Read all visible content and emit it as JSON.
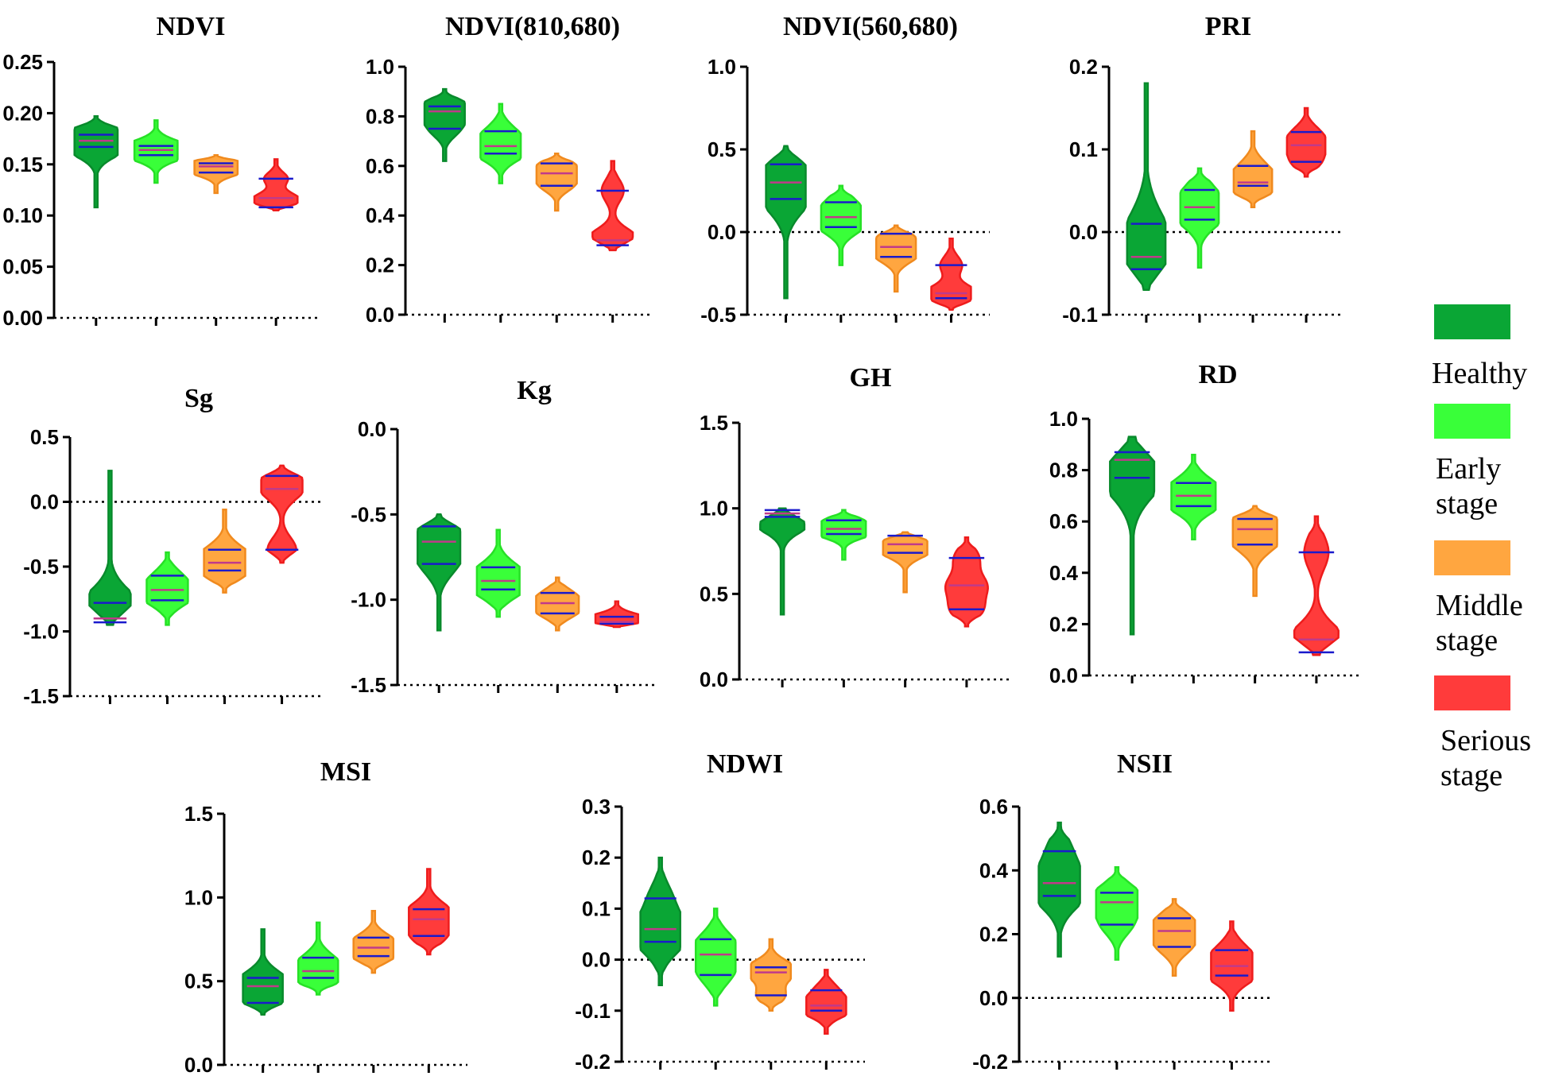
{
  "chart_data": {
    "type": "violin",
    "groups": [
      "Healthy",
      "Early stage",
      "Middle stage",
      "Serious stage"
    ],
    "colors": {
      "Healthy": "#0aa635",
      "Early stage": "#39ff39",
      "Middle stage": "#ffa640",
      "Serious stage": "#ff3b3b"
    },
    "line_colors": {
      "Healthy": "#098a2c",
      "Early stage": "#27e027",
      "Middle stage": "#f08a1e",
      "Serious stage": "#ee1c1c"
    },
    "panels": [
      {
        "title": "NDVI",
        "ylim": [
          0,
          0.25
        ],
        "yticks": [
          "0.00",
          "0.05",
          "0.10",
          "0.15",
          "0.20",
          "0.25"
        ],
        "zero_line": false,
        "violins": [
          {
            "min": 0.108,
            "max": 0.197,
            "q1": 0.167,
            "median": 0.173,
            "q3": 0.179
          },
          {
            "min": 0.132,
            "max": 0.193,
            "q1": 0.159,
            "median": 0.164,
            "q3": 0.168
          },
          {
            "min": 0.122,
            "max": 0.159,
            "q1": 0.142,
            "median": 0.148,
            "q3": 0.151
          },
          {
            "min": 0.105,
            "max": 0.155,
            "q1": 0.108,
            "median": 0.117,
            "q3": 0.136
          }
        ]
      },
      {
        "title": "NDVI(810,680)",
        "ylim": [
          0,
          1.0
        ],
        "yticks": [
          "0.0",
          "0.2",
          "0.4",
          "0.6",
          "0.8",
          "1.0"
        ],
        "zero_line": false,
        "violins": [
          {
            "min": 0.62,
            "max": 0.91,
            "q1": 0.75,
            "median": 0.82,
            "q3": 0.84
          },
          {
            "min": 0.53,
            "max": 0.85,
            "q1": 0.65,
            "median": 0.68,
            "q3": 0.74
          },
          {
            "min": 0.42,
            "max": 0.65,
            "q1": 0.52,
            "median": 0.57,
            "q3": 0.61
          },
          {
            "min": 0.26,
            "max": 0.62,
            "q1": 0.28,
            "median": 0.3,
            "q3": 0.5
          }
        ]
      },
      {
        "title": "NDVI(560,680)",
        "ylim": [
          -0.5,
          1.0
        ],
        "yticks": [
          "-0.5",
          "0.0",
          "0.5",
          "1.0"
        ],
        "zero_line": true,
        "violins": [
          {
            "min": -0.4,
            "max": 0.52,
            "q1": 0.2,
            "median": 0.3,
            "q3": 0.41
          },
          {
            "min": -0.2,
            "max": 0.28,
            "q1": 0.03,
            "median": 0.09,
            "q3": 0.18
          },
          {
            "min": -0.36,
            "max": 0.04,
            "q1": -0.15,
            "median": -0.09,
            "q3": -0.01
          },
          {
            "min": -0.47,
            "max": -0.04,
            "q1": -0.4,
            "median": -0.37,
            "q3": -0.2
          }
        ]
      },
      {
        "title": "PRI",
        "ylim": [
          -0.1,
          0.2
        ],
        "yticks": [
          "-0.1",
          "0.0",
          "0.1",
          "0.2"
        ],
        "zero_line": true,
        "violins": [
          {
            "min": -0.07,
            "max": 0.18,
            "q1": -0.045,
            "median": -0.03,
            "q3": 0.01
          },
          {
            "min": -0.043,
            "max": 0.077,
            "q1": 0.015,
            "median": 0.03,
            "q3": 0.051
          },
          {
            "min": 0.03,
            "max": 0.122,
            "q1": 0.056,
            "median": 0.06,
            "q3": 0.08
          },
          {
            "min": 0.067,
            "max": 0.15,
            "q1": 0.085,
            "median": 0.105,
            "q3": 0.121
          }
        ]
      },
      {
        "title": "Sg",
        "ylim": [
          -1.5,
          0.5
        ],
        "yticks": [
          "-1.5",
          "-1.0",
          "-0.5",
          "0.0",
          "0.5"
        ],
        "zero_line": true,
        "violins": [
          {
            "min": -0.95,
            "max": 0.24,
            "q1": -0.93,
            "median": -0.9,
            "q3": -0.78
          },
          {
            "min": -0.95,
            "max": -0.39,
            "q1": -0.76,
            "median": -0.68,
            "q3": -0.57
          },
          {
            "min": -0.7,
            "max": -0.06,
            "q1": -0.53,
            "median": -0.47,
            "q3": -0.37
          },
          {
            "min": -0.47,
            "max": 0.28,
            "q1": -0.37,
            "median": 0.1,
            "q3": 0.2
          }
        ]
      },
      {
        "title": "Kg",
        "ylim": [
          -1.5,
          0.0
        ],
        "yticks": [
          "-1.5",
          "-1.0",
          "-0.5",
          "0.0"
        ],
        "zero_line": true,
        "violins": [
          {
            "min": -1.18,
            "max": -0.5,
            "q1": -0.79,
            "median": -0.66,
            "q3": -0.57
          },
          {
            "min": -1.1,
            "max": -0.59,
            "q1": -0.94,
            "median": -0.89,
            "q3": -0.81
          },
          {
            "min": -1.18,
            "max": -0.87,
            "q1": -1.08,
            "median": -1.02,
            "q3": -0.96
          },
          {
            "min": -1.16,
            "max": -1.01,
            "q1": -1.14,
            "median": -1.13,
            "q3": -1.1
          }
        ]
      },
      {
        "title": "GH",
        "ylim": [
          0.0,
          1.5
        ],
        "yticks": [
          "0.0",
          "0.5",
          "1.0",
          "1.5"
        ],
        "zero_line": false,
        "violins": [
          {
            "min": 0.38,
            "max": 1.0,
            "q1": 0.95,
            "median": 0.97,
            "q3": 0.99
          },
          {
            "min": 0.7,
            "max": 0.99,
            "q1": 0.85,
            "median": 0.88,
            "q3": 0.93
          },
          {
            "min": 0.51,
            "max": 0.86,
            "q1": 0.74,
            "median": 0.79,
            "q3": 0.84
          },
          {
            "min": 0.31,
            "max": 0.83,
            "q1": 0.41,
            "median": 0.55,
            "q3": 0.71
          }
        ]
      },
      {
        "title": "RD",
        "ylim": [
          0.0,
          1.0
        ],
        "yticks": [
          "0.0",
          "0.2",
          "0.4",
          "0.6",
          "0.8",
          "1.0"
        ],
        "zero_line": false,
        "violins": [
          {
            "min": 0.16,
            "max": 0.93,
            "q1": 0.77,
            "median": 0.84,
            "q3": 0.87
          },
          {
            "min": 0.53,
            "max": 0.86,
            "q1": 0.66,
            "median": 0.7,
            "q3": 0.75
          },
          {
            "min": 0.31,
            "max": 0.66,
            "q1": 0.51,
            "median": 0.57,
            "q3": 0.61
          },
          {
            "min": 0.08,
            "max": 0.62,
            "q1": 0.09,
            "median": 0.14,
            "q3": 0.48
          }
        ]
      },
      {
        "title": "MSI",
        "ylim": [
          0.0,
          1.5
        ],
        "yticks": [
          "0.0",
          "0.5",
          "1.0",
          "1.5"
        ],
        "zero_line": false,
        "violins": [
          {
            "min": 0.3,
            "max": 0.81,
            "q1": 0.37,
            "median": 0.47,
            "q3": 0.52
          },
          {
            "min": 0.42,
            "max": 0.85,
            "q1": 0.52,
            "median": 0.56,
            "q3": 0.64
          },
          {
            "min": 0.55,
            "max": 0.92,
            "q1": 0.65,
            "median": 0.7,
            "q3": 0.76
          },
          {
            "min": 0.66,
            "max": 1.17,
            "q1": 0.77,
            "median": 0.87,
            "q3": 0.93
          }
        ]
      },
      {
        "title": "NDWI",
        "ylim": [
          -0.2,
          0.3
        ],
        "yticks": [
          "-0.2",
          "-0.1",
          "0.0",
          "0.1",
          "0.2",
          "0.3"
        ],
        "zero_line": true,
        "violins": [
          {
            "min": -0.05,
            "max": 0.2,
            "q1": 0.035,
            "median": 0.06,
            "q3": 0.12
          },
          {
            "min": -0.09,
            "max": 0.1,
            "q1": -0.03,
            "median": 0.01,
            "q3": 0.04
          },
          {
            "min": -0.1,
            "max": 0.04,
            "q1": -0.07,
            "median": -0.025,
            "q3": -0.015
          },
          {
            "min": -0.145,
            "max": -0.02,
            "q1": -0.1,
            "median": -0.09,
            "q3": -0.06
          }
        ]
      },
      {
        "title": "NSII",
        "ylim": [
          -0.2,
          0.6
        ],
        "yticks": [
          "-0.2",
          "0.0",
          "0.2",
          "0.4",
          "0.6"
        ],
        "zero_line": true,
        "violins": [
          {
            "min": 0.13,
            "max": 0.55,
            "q1": 0.32,
            "median": 0.36,
            "q3": 0.46
          },
          {
            "min": 0.12,
            "max": 0.41,
            "q1": 0.23,
            "median": 0.3,
            "q3": 0.33
          },
          {
            "min": 0.07,
            "max": 0.31,
            "q1": 0.16,
            "median": 0.21,
            "q3": 0.25
          },
          {
            "min": -0.04,
            "max": 0.24,
            "q1": 0.07,
            "median": 0.1,
            "q3": 0.15
          }
        ]
      }
    ]
  },
  "legend": {
    "items": [
      {
        "label": "Healthy",
        "color": "#0aa635"
      },
      {
        "label": "Early\nstage",
        "color": "#39ff39"
      },
      {
        "label": "Middle\nstage",
        "color": "#ffa640"
      },
      {
        "label": "Serious\nstage",
        "color": "#ff3b3b"
      }
    ]
  }
}
